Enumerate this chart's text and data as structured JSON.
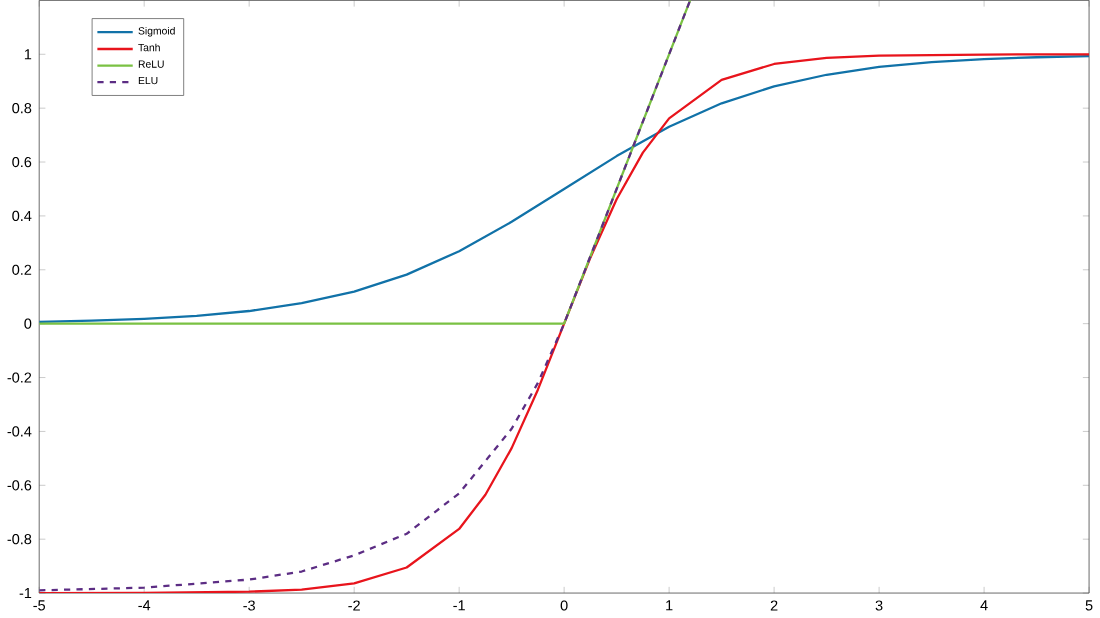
{
  "chart_data": {
    "type": "line",
    "xlim": [
      -5,
      5
    ],
    "ylim": [
      -1,
      1.2
    ],
    "xticks": [
      -5,
      -4,
      -3,
      -2,
      -1,
      0,
      1,
      2,
      3,
      4,
      5
    ],
    "yticks": [
      -1,
      -0.8,
      -0.6,
      -0.4,
      -0.2,
      0,
      0.2,
      0.4,
      0.6,
      0.8,
      1
    ],
    "grid": false,
    "legend": "top left",
    "series": [
      {
        "name": "Sigmoid",
        "color": "#1172a8",
        "line_style": "solid",
        "x": [
          -5,
          -4.5,
          -4,
          -3.5,
          -3,
          -2.5,
          -2,
          -1.5,
          -1,
          -0.5,
          0,
          0.5,
          1,
          1.5,
          2,
          2.5,
          3,
          3.5,
          4,
          4.5,
          5
        ],
        "values": [
          0.007,
          0.011,
          0.018,
          0.029,
          0.047,
          0.076,
          0.119,
          0.182,
          0.269,
          0.378,
          0.5,
          0.622,
          0.731,
          0.818,
          0.881,
          0.924,
          0.953,
          0.971,
          0.982,
          0.989,
          0.993
        ]
      },
      {
        "name": "Tanh",
        "color": "#e8141c",
        "line_style": "solid",
        "x": [
          -5,
          -4,
          -3,
          -2.5,
          -2,
          -1.5,
          -1,
          -0.75,
          -0.5,
          -0.25,
          0,
          0.25,
          0.5,
          0.75,
          1,
          1.5,
          2,
          2.5,
          3,
          4,
          5
        ],
        "values": [
          -1.0,
          -0.999,
          -0.995,
          -0.987,
          -0.964,
          -0.905,
          -0.762,
          -0.635,
          -0.462,
          -0.245,
          0,
          0.245,
          0.462,
          0.635,
          0.762,
          0.905,
          0.964,
          0.987,
          0.995,
          0.999,
          1.0
        ]
      },
      {
        "name": "ReLU",
        "color": "#7ac143",
        "line_style": "solid",
        "x": [
          -5,
          0,
          1.2
        ],
        "values": [
          0,
          0,
          1.2
        ]
      },
      {
        "name": "ELU",
        "color": "#5c2d84",
        "line_style": "dashed",
        "x": [
          -5,
          -4,
          -3,
          -2.5,
          -2,
          -1.5,
          -1,
          -0.5,
          -0.25,
          0,
          1.2
        ],
        "values": [
          -0.99,
          -0.98,
          -0.95,
          -0.92,
          -0.86,
          -0.78,
          -0.63,
          -0.39,
          -0.22,
          0,
          1.2
        ]
      }
    ]
  }
}
